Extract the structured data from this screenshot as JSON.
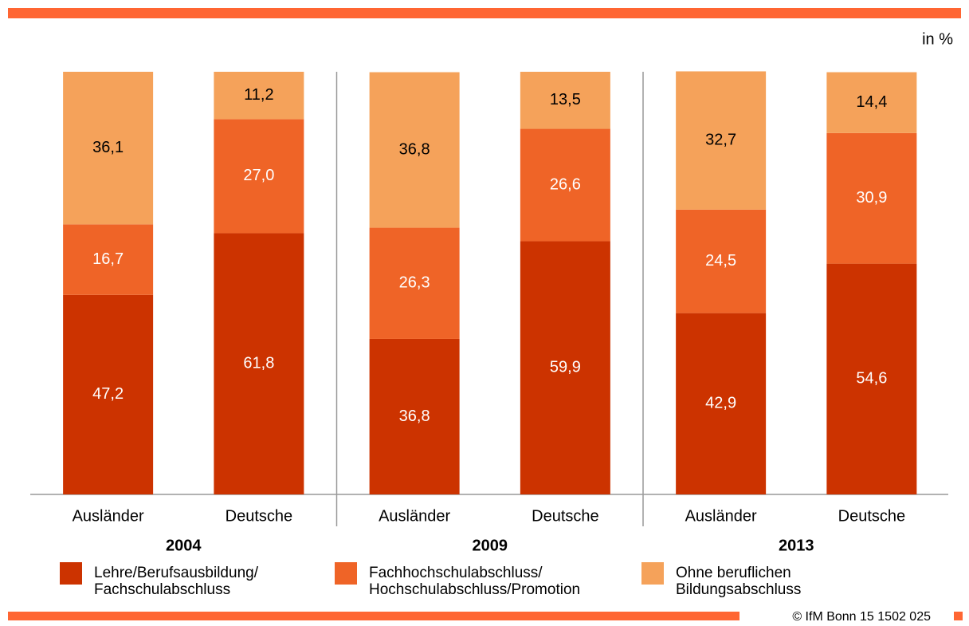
{
  "chart_data": {
    "type": "stacked-bar",
    "unit_label": "in %",
    "groups": [
      "2004",
      "2009",
      "2013"
    ],
    "categories": [
      "Ausländer",
      "Deutsche",
      "Ausländer",
      "Deutsche",
      "Ausländer",
      "Deutsche"
    ],
    "ylim": [
      0,
      100
    ],
    "series": [
      {
        "name": "Lehre/Berufsausbildung/\nFachschulabschluss",
        "color": "#cc3300",
        "label_color": "#ffffff",
        "values": [
          47.2,
          61.8,
          36.8,
          59.9,
          42.9,
          54.6
        ],
        "value_labels": [
          "47,2",
          "61,8",
          "36,8",
          "59,9",
          "42,9",
          "54,6"
        ]
      },
      {
        "name": "Fachhochschulabschluss/\nHochschulabschluss/Promotion",
        "color": "#ef6427",
        "label_color": "#ffffff",
        "values": [
          16.7,
          27.0,
          26.3,
          26.6,
          24.5,
          30.9
        ],
        "value_labels": [
          "16,7",
          "27,0",
          "26,3",
          "26,6",
          "24,5",
          "30,9"
        ]
      },
      {
        "name": "Ohne beruflichen\nBildungsabschluss",
        "color": "#f5a25a",
        "label_color": "#000000",
        "values": [
          36.1,
          11.2,
          36.8,
          13.5,
          32.7,
          14.4
        ],
        "value_labels": [
          "36,1",
          "11,2",
          "36,8",
          "13,5",
          "32,7",
          "14,4"
        ]
      }
    ],
    "footer": "© IfM Bonn 15 1502 025"
  }
}
